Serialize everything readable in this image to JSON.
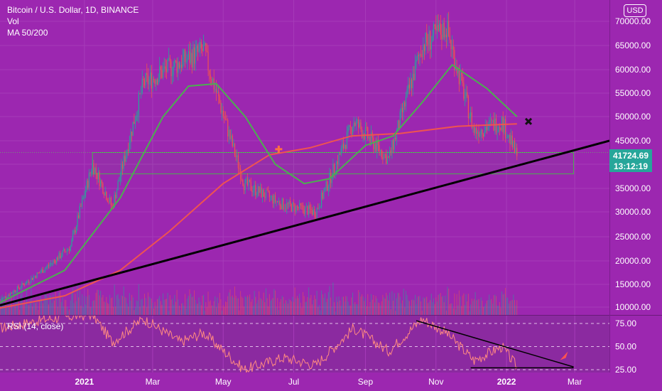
{
  "legend": {
    "symbol_line": "Bitcoin / U.S. Dollar, 1D, BINANCE",
    "volume_label": "Vol",
    "ma_label": "MA 50/200",
    "rsi_label": "RSI (14, close)"
  },
  "currency_button": "USD",
  "last_price": {
    "price": "41724.69",
    "countdown": "13:12:19"
  },
  "colors": {
    "background": "#9c27b0",
    "candle_up": "#26a69a",
    "candle_down": "#ef5350",
    "ma50": "#4caf50",
    "ma200": "#ef5350",
    "trendline": "#000000",
    "zone_border": "#4caf50",
    "rsi": "#ff8a80"
  },
  "chart_data": [
    {
      "type": "candlestick",
      "title": "Bitcoin / U.S. Dollar, 1D, BINANCE",
      "x_tick_labels": [
        "2021",
        "Mar",
        "May",
        "Jul",
        "Sep",
        "Nov",
        "2022",
        "Mar"
      ],
      "y_tick_labels": [
        "70000.00",
        "65000.00",
        "60000.00",
        "55000.00",
        "50000.00",
        "45000.00",
        "40000.00",
        "35000.00",
        "30000.00",
        "25000.00",
        "20000.00",
        "15000.00",
        "10000.00"
      ],
      "ylim": [
        9000,
        72500
      ],
      "last_price": 41724.69,
      "price_path": [
        [
          "2020-10-20",
          11500
        ],
        [
          "2020-11-15",
          16000
        ],
        [
          "2020-12-01",
          19000
        ],
        [
          "2020-12-20",
          23000
        ],
        [
          "2021-01-08",
          40000
        ],
        [
          "2021-01-25",
          31000
        ],
        [
          "2021-02-21",
          57000
        ],
        [
          "2021-03-13",
          60000
        ],
        [
          "2021-04-14",
          64000
        ],
        [
          "2021-05-19",
          36000
        ],
        [
          "2021-06-22",
          31500
        ],
        [
          "2021-07-20",
          30000
        ],
        [
          "2021-08-22",
          49000
        ],
        [
          "2021-09-21",
          41000
        ],
        [
          "2021-10-20",
          65000
        ],
        [
          "2021-11-10",
          68800
        ],
        [
          "2021-12-04",
          47000
        ],
        [
          "2021-12-28",
          49000
        ],
        [
          "2022-01-10",
          41724.69
        ]
      ],
      "ma50_path": [
        [
          "2020-10-20",
          11000
        ],
        [
          "2020-12-15",
          18000
        ],
        [
          "2021-02-01",
          33000
        ],
        [
          "2021-03-10",
          50000
        ],
        [
          "2021-04-01",
          56500
        ],
        [
          "2021-04-25",
          57000
        ],
        [
          "2021-05-20",
          50000
        ],
        [
          "2021-06-15",
          40000
        ],
        [
          "2021-07-10",
          36000
        ],
        [
          "2021-08-01",
          37000
        ],
        [
          "2021-09-01",
          44000
        ],
        [
          "2021-09-25",
          46000
        ],
        [
          "2021-10-20",
          53000
        ],
        [
          "2021-11-15",
          61000
        ],
        [
          "2021-12-15",
          56000
        ],
        [
          "2022-01-10",
          50000
        ]
      ],
      "ma200_path": [
        [
          "2020-10-20",
          9800
        ],
        [
          "2020-12-15",
          12500
        ],
        [
          "2021-02-01",
          18000
        ],
        [
          "2021-03-15",
          26000
        ],
        [
          "2021-05-01",
          36000
        ],
        [
          "2021-06-10",
          42000
        ],
        [
          "2021-07-15",
          43500
        ],
        [
          "2021-08-20",
          46000
        ],
        [
          "2021-10-01",
          46500
        ],
        [
          "2021-11-20",
          48000
        ],
        [
          "2022-01-10",
          48500
        ]
      ],
      "trendline": [
        [
          "2020-10-20",
          10400
        ],
        [
          "2022-03-31",
          45000
        ]
      ],
      "zone": {
        "from": "2021-01-08",
        "to": "2022-02-28",
        "top": 42500,
        "bottom": 38000
      },
      "annotations": [
        "golden-cross marker",
        "death-cross marker"
      ]
    },
    {
      "type": "line",
      "title": "RSI (14, close)",
      "y_tick_labels": [
        "75.00",
        "50.00",
        "25.00"
      ],
      "ylim": [
        22,
        85
      ],
      "rsi_path": [
        [
          "2020-10-20",
          70
        ],
        [
          "2020-12-01",
          80
        ],
        [
          "2021-01-08",
          85
        ],
        [
          "2021-01-25",
          55
        ],
        [
          "2021-02-21",
          80
        ],
        [
          "2021-03-25",
          55
        ],
        [
          "2021-04-14",
          65
        ],
        [
          "2021-05-19",
          25
        ],
        [
          "2021-06-22",
          38
        ],
        [
          "2021-07-20",
          30
        ],
        [
          "2021-08-22",
          70
        ],
        [
          "2021-09-21",
          45
        ],
        [
          "2021-10-20",
          80
        ],
        [
          "2021-11-10",
          65
        ],
        [
          "2021-12-04",
          35
        ],
        [
          "2021-12-28",
          50
        ],
        [
          "2022-01-10",
          28
        ]
      ],
      "trendline_desc": [
        [
          "2021-10-15",
          78
        ],
        [
          "2022-02-28",
          28
        ]
      ],
      "trendline_flat": [
        [
          "2021-12-01",
          27
        ],
        [
          "2022-02-28",
          27
        ]
      ],
      "annotations": [
        "rocket marker"
      ]
    }
  ]
}
